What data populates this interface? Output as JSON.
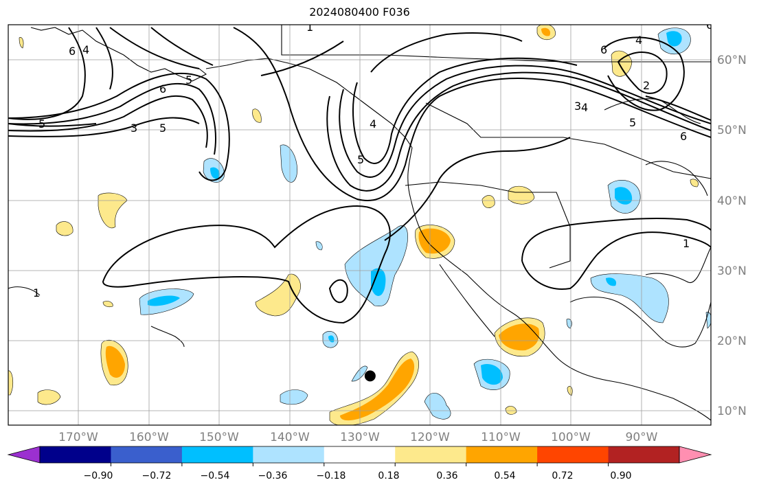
{
  "title": "2024080400 F036",
  "map": {
    "lon_range": [
      -180,
      -80
    ],
    "lat_range": [
      8,
      65
    ],
    "latitude_labels": [
      "60°N",
      "50°N",
      "40°N",
      "30°N",
      "20°N",
      "10°N"
    ],
    "longitude_labels": [
      "170°W",
      "160°W",
      "150°W",
      "140°W",
      "130°W",
      "120°W",
      "110°W",
      "100°W",
      "90°W"
    ],
    "contour_labels": [
      "6",
      "4",
      "6",
      "3",
      "5",
      "1",
      "5",
      "6",
      "5",
      "4",
      "5",
      "3",
      "4",
      "2",
      "6",
      "4",
      "5",
      "6",
      "1",
      "1"
    ],
    "marker": {
      "lon": -128.5,
      "lat": 15.0,
      "color": "#000000"
    },
    "grid": true
  },
  "colorbar": {
    "labels": [
      "−0.90",
      "−0.72",
      "−0.54",
      "−0.36",
      "−0.18",
      "0.18",
      "0.36",
      "0.54",
      "0.72",
      "0.90"
    ],
    "colors": [
      "#9b30d0",
      "#00008b",
      "#3a5fcd",
      "#00bfff",
      "#aee3ff",
      "#ffffff",
      "#fde98c",
      "#ffa500",
      "#ff4500",
      "#b22222",
      "#ff8fb1"
    ]
  },
  "colors": {
    "neg_light": "#aee3ff",
    "neg_mid": "#00bfff",
    "pos_light": "#fde98c",
    "pos_mid": "#ffa500",
    "grid": "#9e9e9e",
    "coast": "#000000"
  }
}
